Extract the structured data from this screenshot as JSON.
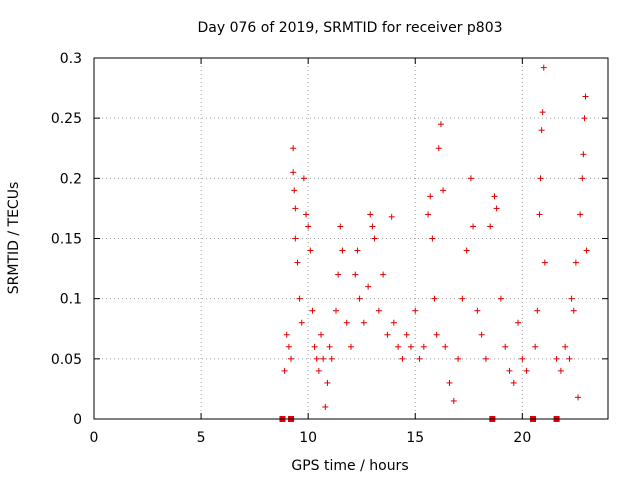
{
  "chart_data": {
    "type": "scatter",
    "title": "Day 076 of 2019, SRMTID for receiver p803",
    "xlabel": "GPS time / hours",
    "ylabel": "SRMTID / TECUs",
    "xlim": [
      0,
      24
    ],
    "ylim": [
      0,
      0.3
    ],
    "x_ticks": [
      0,
      5,
      10,
      15,
      20
    ],
    "x_tick_labels": [
      "0",
      "5",
      "10",
      "15",
      "20"
    ],
    "y_ticks": [
      0,
      0.05,
      0.1,
      0.15,
      0.2,
      0.25,
      0.3
    ],
    "y_tick_labels": [
      "0",
      "0.05",
      "0.1",
      "0.15",
      "0.2",
      "0.25",
      "0.3"
    ],
    "grid": true,
    "marker": "+",
    "color": "#e00000",
    "zero_markers_x": [
      8.8,
      9.2,
      18.6,
      20.5,
      21.6
    ],
    "series": [
      {
        "name": "SRMTID",
        "points": [
          [
            8.9,
            0.04
          ],
          [
            9.0,
            0.07
          ],
          [
            9.1,
            0.06
          ],
          [
            9.2,
            0.05
          ],
          [
            9.3,
            0.225
          ],
          [
            9.3,
            0.205
          ],
          [
            9.35,
            0.19
          ],
          [
            9.4,
            0.175
          ],
          [
            9.4,
            0.15
          ],
          [
            9.5,
            0.13
          ],
          [
            9.6,
            0.1
          ],
          [
            9.7,
            0.08
          ],
          [
            9.8,
            0.2
          ],
          [
            9.9,
            0.17
          ],
          [
            10.0,
            0.16
          ],
          [
            10.1,
            0.14
          ],
          [
            10.2,
            0.09
          ],
          [
            10.3,
            0.06
          ],
          [
            10.4,
            0.05
          ],
          [
            10.5,
            0.04
          ],
          [
            10.6,
            0.07
          ],
          [
            10.7,
            0.05
          ],
          [
            10.8,
            0.01
          ],
          [
            10.9,
            0.03
          ],
          [
            11.0,
            0.06
          ],
          [
            11.1,
            0.05
          ],
          [
            11.3,
            0.09
          ],
          [
            11.4,
            0.12
          ],
          [
            11.5,
            0.16
          ],
          [
            11.6,
            0.14
          ],
          [
            11.8,
            0.08
          ],
          [
            12.0,
            0.06
          ],
          [
            12.2,
            0.12
          ],
          [
            12.3,
            0.14
          ],
          [
            12.4,
            0.1
          ],
          [
            12.6,
            0.08
          ],
          [
            12.8,
            0.11
          ],
          [
            12.9,
            0.17
          ],
          [
            13.0,
            0.16
          ],
          [
            13.1,
            0.15
          ],
          [
            13.3,
            0.09
          ],
          [
            13.5,
            0.12
          ],
          [
            13.7,
            0.07
          ],
          [
            13.9,
            0.168
          ],
          [
            14.0,
            0.08
          ],
          [
            14.2,
            0.06
          ],
          [
            14.4,
            0.05
          ],
          [
            14.6,
            0.07
          ],
          [
            14.8,
            0.06
          ],
          [
            15.0,
            0.09
          ],
          [
            15.2,
            0.05
          ],
          [
            15.4,
            0.06
          ],
          [
            15.6,
            0.17
          ],
          [
            15.7,
            0.185
          ],
          [
            15.8,
            0.15
          ],
          [
            15.9,
            0.1
          ],
          [
            16.0,
            0.07
          ],
          [
            16.1,
            0.225
          ],
          [
            16.2,
            0.245
          ],
          [
            16.3,
            0.19
          ],
          [
            16.4,
            0.06
          ],
          [
            16.6,
            0.03
          ],
          [
            16.8,
            0.015
          ],
          [
            17.0,
            0.05
          ],
          [
            17.2,
            0.1
          ],
          [
            17.4,
            0.14
          ],
          [
            17.6,
            0.2
          ],
          [
            17.7,
            0.16
          ],
          [
            17.9,
            0.09
          ],
          [
            18.1,
            0.07
          ],
          [
            18.3,
            0.05
          ],
          [
            18.5,
            0.16
          ],
          [
            18.7,
            0.185
          ],
          [
            18.8,
            0.175
          ],
          [
            19.0,
            0.1
          ],
          [
            19.2,
            0.06
          ],
          [
            19.4,
            0.04
          ],
          [
            19.6,
            0.03
          ],
          [
            19.8,
            0.08
          ],
          [
            20.0,
            0.05
          ],
          [
            20.2,
            0.04
          ],
          [
            20.6,
            0.06
          ],
          [
            20.7,
            0.09
          ],
          [
            20.8,
            0.17
          ],
          [
            20.85,
            0.2
          ],
          [
            20.9,
            0.24
          ],
          [
            20.95,
            0.255
          ],
          [
            21.0,
            0.292
          ],
          [
            21.05,
            0.13
          ],
          [
            21.6,
            0.05
          ],
          [
            21.8,
            0.04
          ],
          [
            22.0,
            0.06
          ],
          [
            22.2,
            0.05
          ],
          [
            22.3,
            0.1
          ],
          [
            22.5,
            0.13
          ],
          [
            22.7,
            0.17
          ],
          [
            22.8,
            0.2
          ],
          [
            22.85,
            0.22
          ],
          [
            22.9,
            0.25
          ],
          [
            22.95,
            0.268
          ],
          [
            23.0,
            0.14
          ],
          [
            22.6,
            0.018
          ],
          [
            22.4,
            0.09
          ]
        ]
      }
    ]
  }
}
